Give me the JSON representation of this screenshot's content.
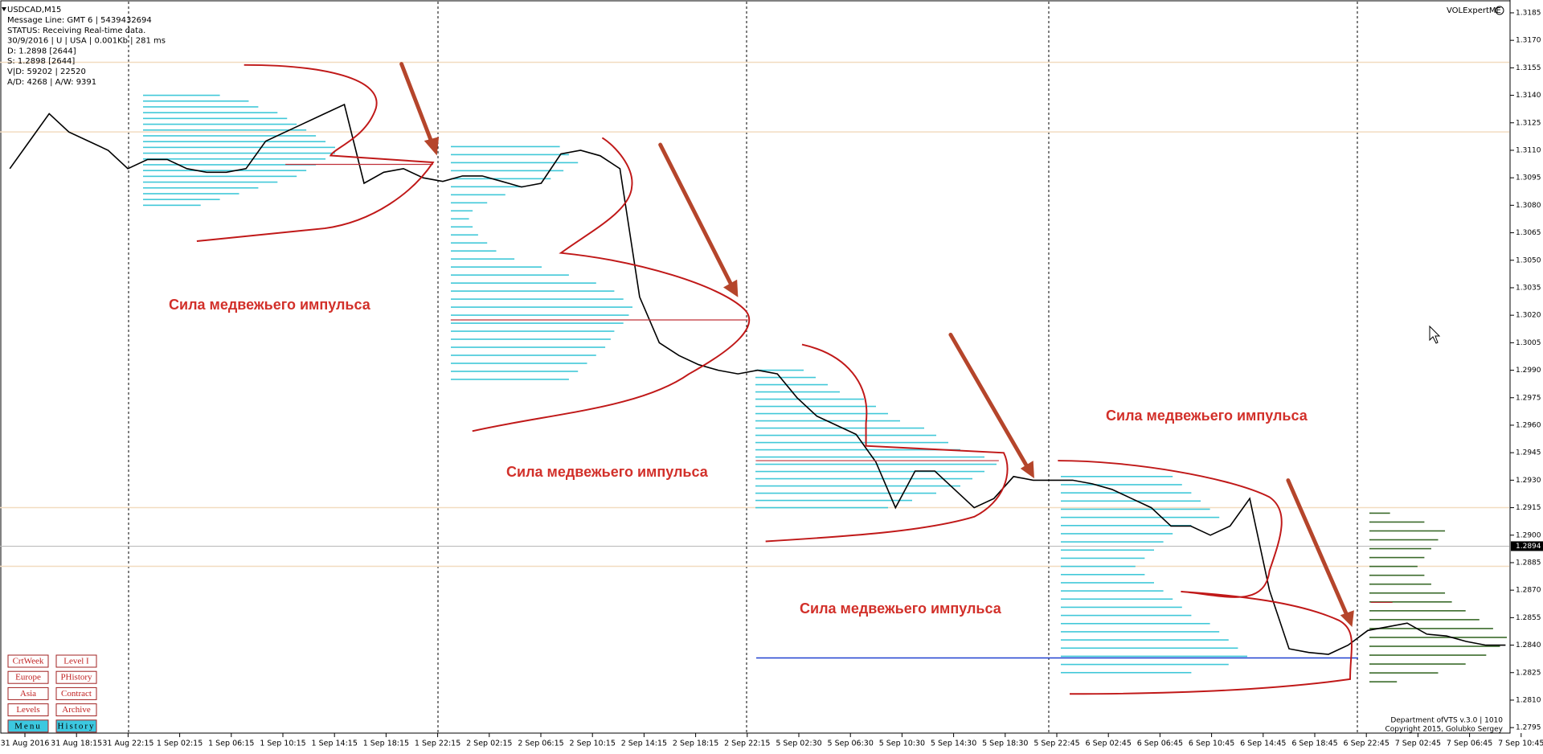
{
  "window": {
    "info_lines": [
      "Message Line: GMT 6 | 5439432694",
      "STATUS:  Receiving Real-time data.",
      "30/9/2016 | U | USA | 0.001Kb | 281 ms",
      "D: 1.2898  [2644]",
      "S: 1.2898  [2644]",
      "V|D: 59202 | 22520",
      "A/D: 4268 | A/W: 9391"
    ],
    "indicator": "VOLExpertME",
    "buttons": [
      "CrtWeek",
      "Level I",
      "Europe",
      "PHistory",
      "Asia",
      "Contract",
      "Levels",
      "Archive",
      "Menu",
      "History"
    ],
    "footer": [
      "Department ofVTS  v.3.0 | 1010",
      "Copyright 2015, Golubko Sergey"
    ]
  },
  "chart_data": {
    "type": "line",
    "title": "USDCAD,M15",
    "time_labels": [
      "31 Aug 2016",
      "31 Aug 18:15",
      "31 Aug 22:15",
      "1 Sep 02:15",
      "1 Sep 06:15",
      "1 Sep 10:15",
      "1 Sep 14:15",
      "1 Sep 18:15",
      "1 Sep 22:15",
      "2 Sep 02:15",
      "2 Sep 06:15",
      "2 Sep 10:15",
      "2 Sep 14:15",
      "2 Sep 18:15",
      "2 Sep 22:15",
      "5 Sep 02:30",
      "5 Sep 06:30",
      "5 Sep 10:30",
      "5 Sep 14:30",
      "5 Sep 18:30",
      "5 Sep 22:45",
      "6 Sep 02:45",
      "6 Sep 06:45",
      "6 Sep 10:45",
      "6 Sep 14:45",
      "6 Sep 18:45",
      "6 Sep 22:45",
      "7 Sep 02:45",
      "7 Sep 06:45",
      "7 Sep 10:45"
    ],
    "series": [
      {
        "color": "#000000",
        "values": [
          1.31,
          1.3115,
          1.313,
          1.312,
          1.3115,
          1.311,
          1.31,
          1.3105,
          1.3105,
          1.31,
          1.3098,
          1.3098,
          1.31,
          1.3115,
          1.312,
          1.3125,
          1.313,
          1.3135,
          1.3092,
          1.3098,
          1.31,
          1.3095,
          1.3093,
          1.3096,
          1.3096,
          1.3093,
          1.309,
          1.3092,
          1.3108,
          1.311,
          1.3107,
          1.31,
          1.303,
          1.3005,
          1.2998,
          1.2993,
          1.299,
          1.2988,
          1.299,
          1.2988,
          1.2975,
          1.2965,
          1.296,
          1.2955,
          1.294,
          1.2915,
          1.2935,
          1.2935,
          1.2925,
          1.2915,
          1.292,
          1.2932,
          1.293,
          1.293,
          1.293,
          1.2928,
          1.2925,
          1.292,
          1.2915,
          1.2905,
          1.2905,
          1.29,
          1.2905,
          1.292,
          1.287,
          1.2838,
          1.2836,
          1.2835,
          1.284,
          1.2848,
          1.285,
          1.2852,
          1.2846,
          1.2845,
          1.2842,
          1.284,
          1.284
        ]
      }
    ],
    "ylim": [
      1.2792,
      1.3192
    ],
    "yticks": [
      1.2795,
      {
        "value": 1.281,
        "label": "1.2810"
      },
      1.2825,
      {
        "value": 1.284,
        "label": "1.2840"
      },
      1.2855,
      {
        "value": 1.287,
        "label": "1.2870"
      },
      1.2885,
      {
        "value": 1.29,
        "label": "1.2900"
      },
      1.2915,
      {
        "value": 1.293,
        "label": "1.2930"
      },
      1.2945,
      {
        "value": 1.296,
        "label": "1.2960"
      },
      1.2975,
      {
        "value": 1.299,
        "label": "1.2990"
      },
      1.3005,
      {
        "value": 1.302,
        "label": "1.3020"
      },
      1.3035,
      {
        "value": 1.305,
        "label": "1.3050"
      },
      1.3065,
      {
        "value": 1.308,
        "label": "1.3080"
      },
      1.3095,
      {
        "value": 1.311,
        "label": "1.3110"
      },
      1.3125,
      {
        "value": 1.314,
        "label": "1.3140"
      },
      1.3155,
      {
        "value": 1.317,
        "label": "1.3170"
      },
      1.3185
    ],
    "last_price": 1.2894,
    "levels": [
      1.3158,
      1.312,
      1.2915,
      1.2883
    ],
    "level_color": "#f2dcc0",
    "support": 1.2833,
    "support_color": "#2040d0",
    "annotations": [
      "Сила медвежьего импульса",
      "Сила медвежьего импульса",
      "Сила медвежьего импульса",
      "Сила медвежьего импульса"
    ],
    "profiles": [
      {
        "range": [
          1.314,
          1.308
        ],
        "color": "#40c8d8",
        "volumes": [
          40,
          55,
          60,
          70,
          75,
          80,
          85,
          90,
          95,
          100,
          100,
          95,
          90,
          85,
          80,
          70,
          60,
          50,
          40,
          30
        ]
      },
      {
        "range": [
          1.3112,
          1.2985
        ],
        "color": "#40c8d8",
        "volumes": [
          60,
          65,
          70,
          62,
          55,
          40,
          30,
          20,
          12,
          10,
          12,
          15,
          20,
          25,
          35,
          50,
          65,
          80,
          90,
          95,
          100,
          98,
          95,
          90,
          88,
          85,
          80,
          75,
          70,
          65
        ]
      },
      {
        "range": [
          1.299,
          1.2915
        ],
        "color": "#40c8d8",
        "volumes": [
          20,
          25,
          30,
          35,
          45,
          50,
          55,
          60,
          70,
          75,
          80,
          85,
          95,
          100,
          95,
          90,
          85,
          75,
          65,
          55
        ]
      },
      {
        "range": [
          1.2932,
          1.2825
        ],
        "color": "#40c8d8",
        "volumes": [
          60,
          65,
          70,
          75,
          80,
          85,
          70,
          60,
          55,
          50,
          45,
          40,
          45,
          50,
          55,
          60,
          65,
          70,
          80,
          85,
          90,
          95,
          100,
          90,
          70
        ]
      },
      {
        "range": [
          1.2912,
          1.282
        ],
        "color": "#3a6a2a",
        "volumes": [
          15,
          40,
          55,
          50,
          45,
          40,
          35,
          40,
          45,
          55,
          60,
          70,
          80,
          90,
          100,
          95,
          85,
          70,
          50,
          20
        ]
      }
    ]
  }
}
